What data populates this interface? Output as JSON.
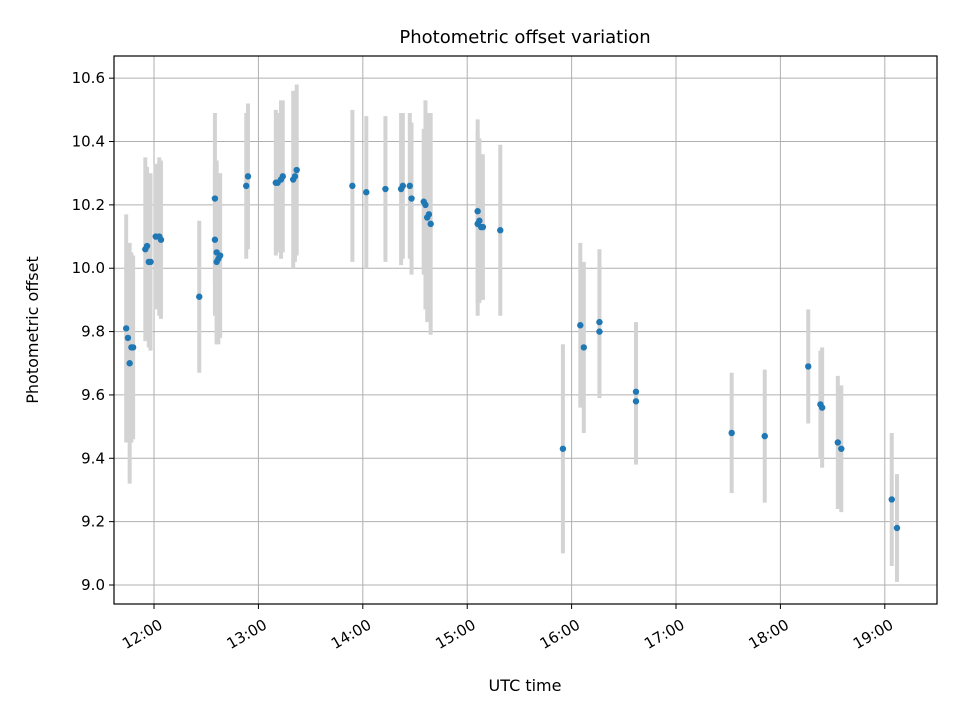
{
  "chart_data": {
    "type": "scatter",
    "title": "Photometric offset variation",
    "xlabel": "UTC time",
    "ylabel": "Photometric offset",
    "grid": true,
    "x_ticks": [
      "12:00",
      "13:00",
      "14:00",
      "15:00",
      "16:00",
      "17:00",
      "18:00",
      "19:00"
    ],
    "y_ticks": [
      "9.0",
      "9.2",
      "9.4",
      "9.6",
      "9.8",
      "10.0",
      "10.2",
      "10.4",
      "10.6"
    ],
    "xlim": [
      "11:37",
      "19:30"
    ],
    "ylim": [
      8.94,
      10.67
    ],
    "colors": {
      "points": "#1f77b4",
      "errorbars": "#d3d3d3",
      "grid": "#b0b0b0"
    },
    "series": [
      {
        "x": [
          "11:44",
          "11:45",
          "11:46",
          "11:47",
          "11:48",
          "11:55",
          "11:56",
          "11:57",
          "11:58",
          "12:01",
          "12:03",
          "12:04",
          "12:26",
          "12:35",
          "12:35",
          "12:36",
          "12:36",
          "12:37",
          "12:38",
          "12:53",
          "12:54",
          "13:10",
          "13:11",
          "13:13",
          "13:14",
          "13:20",
          "13:21",
          "13:22",
          "13:54",
          "14:02",
          "14:13",
          "14:22",
          "14:23",
          "14:27",
          "14:28",
          "14:35",
          "14:36",
          "14:37",
          "14:38",
          "14:39",
          "15:06",
          "15:06",
          "15:07",
          "15:08",
          "15:09",
          "15:19",
          "15:55",
          "16:05",
          "16:07",
          "16:16",
          "16:16",
          "16:37",
          "16:37",
          "17:32",
          "17:51",
          "18:16",
          "18:23",
          "18:24",
          "18:33",
          "18:35",
          "19:04",
          "19:07"
        ],
        "y": [
          9.81,
          9.78,
          9.7,
          9.75,
          9.75,
          10.06,
          10.07,
          10.02,
          10.02,
          10.1,
          10.1,
          10.09,
          9.91,
          10.22,
          10.09,
          10.05,
          10.02,
          10.03,
          10.04,
          10.26,
          10.29,
          10.27,
          10.27,
          10.28,
          10.29,
          10.28,
          10.29,
          10.31,
          10.26,
          10.24,
          10.25,
          10.25,
          10.26,
          10.26,
          10.22,
          10.21,
          10.2,
          10.16,
          10.17,
          10.14,
          10.18,
          10.14,
          10.15,
          10.13,
          10.13,
          10.12,
          9.43,
          9.82,
          9.75,
          9.83,
          9.8,
          9.61,
          9.58,
          9.48,
          9.47,
          9.69,
          9.57,
          9.56,
          9.45,
          9.43,
          9.27,
          9.18
        ],
        "err": [
          0.36,
          0.28,
          0.38,
          0.3,
          0.29,
          0.29,
          0.25,
          0.27,
          0.28,
          0.23,
          0.25,
          0.25,
          0.24,
          0.27,
          0.24,
          0.29,
          0.26,
          0.27,
          0.26,
          0.23,
          0.23,
          0.23,
          0.22,
          0.25,
          0.24,
          0.28,
          0.27,
          0.27,
          0.24,
          0.24,
          0.23,
          0.24,
          0.23,
          0.23,
          0.24,
          0.23,
          0.33,
          0.33,
          0.32,
          0.35,
          0.29,
          0.29,
          0.26,
          0.23,
          0.23,
          0.27,
          0.33,
          0.26,
          0.27,
          0.23,
          0.21,
          0.22,
          0.2,
          0.19,
          0.21,
          0.18,
          0.17,
          0.19,
          0.21,
          0.2,
          0.21,
          0.17
        ]
      }
    ]
  }
}
